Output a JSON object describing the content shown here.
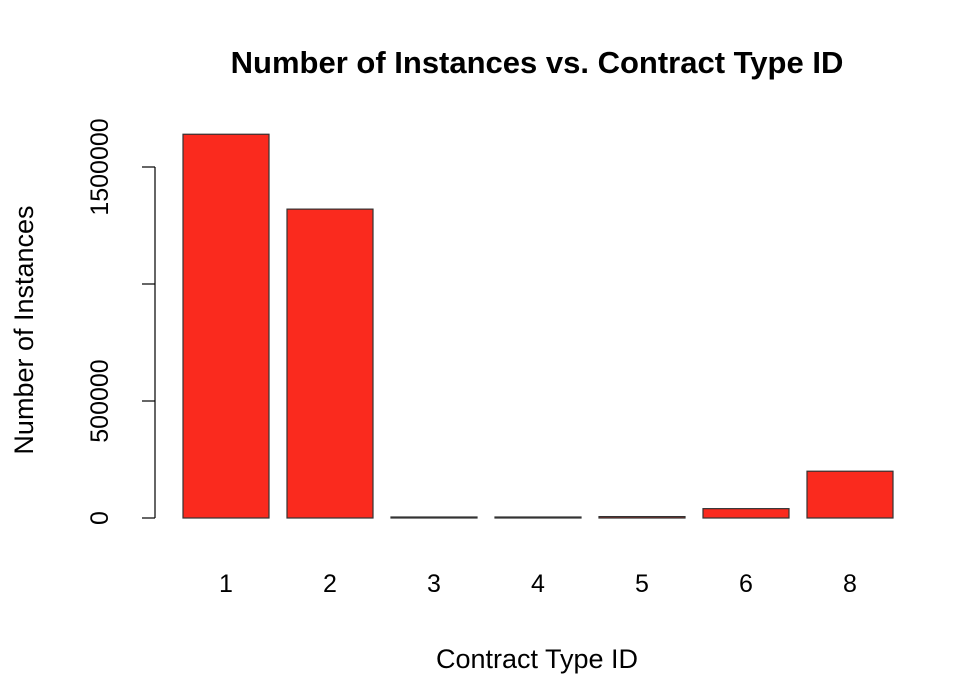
{
  "chart_data": {
    "type": "bar",
    "title": "Number of Instances vs. Contract Type ID",
    "xlabel": "Contract Type ID",
    "ylabel": "Number of Instances",
    "categories": [
      "1",
      "2",
      "3",
      "4",
      "5",
      "6",
      "8"
    ],
    "values": [
      1640000,
      1320000,
      1500,
      1000,
      6000,
      40000,
      200000
    ],
    "ylim": [
      0,
      1750000
    ],
    "yticks": [
      0,
      500000,
      1000000,
      1500000
    ],
    "ytick_labels": [
      "0",
      "500000",
      "",
      "1500000"
    ],
    "bar_color": "#fa2a1e",
    "grid": false
  }
}
